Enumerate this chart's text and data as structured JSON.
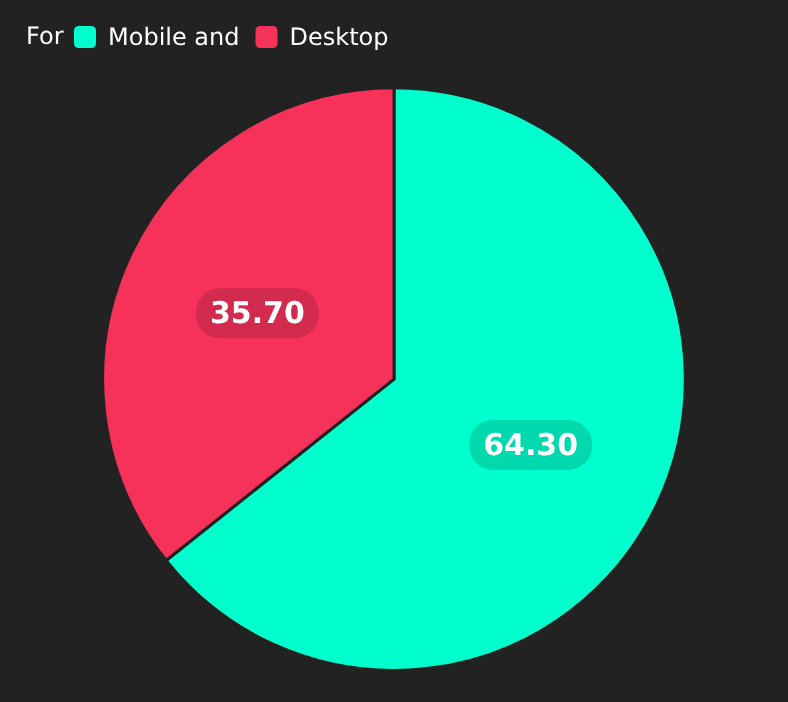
{
  "chart_data": {
    "type": "pie",
    "legend_title": "For",
    "legend": "top left",
    "categories": [
      "Mobile and",
      "Desktop"
    ],
    "values": [
      64.3,
      35.7
    ],
    "colors": [
      "#00ffcc",
      "#f7325a"
    ],
    "value_labels": [
      "64.30",
      "35.70"
    ]
  }
}
